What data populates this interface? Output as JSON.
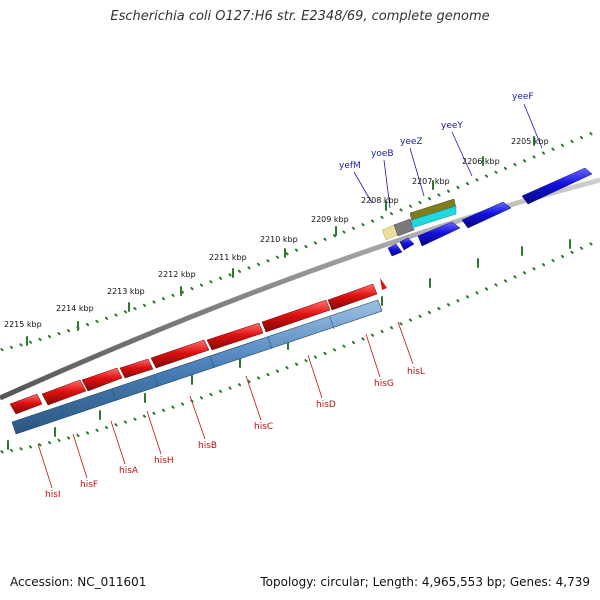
{
  "title": "Escherichia coli O127:H6 str. E2348/69, complete genome",
  "footer": {
    "accession": "Accession: NC_011601",
    "stats": "Topology: circular; Length: 4,965,553 bp; Genes: 4,739"
  },
  "colors": {
    "forward_cds": "#1010e0",
    "reverse_cds": "#e01010",
    "operon_band": "#4a7fb8",
    "backbone": "#8a8a8a",
    "ticks": "#2a7a2a",
    "label_blue": "#1a1aa8",
    "label_red": "#c01010"
  },
  "kbp_labels": [
    "2205 kbp",
    "2206 kbp",
    "2207 kbp",
    "2208 kbp",
    "2209 kbp",
    "2210 kbp",
    "2211 kbp",
    "2212 kbp",
    "2213 kbp",
    "2214 kbp",
    "2215 kbp"
  ],
  "forward_genes": [
    "yeeF",
    "yeeY",
    "yeeZ",
    "yoeB",
    "yefM"
  ],
  "reverse_genes": [
    "hisL",
    "hisG",
    "hisD",
    "hisC",
    "hisB",
    "hisH",
    "hisA",
    "hisF",
    "hisI"
  ]
}
